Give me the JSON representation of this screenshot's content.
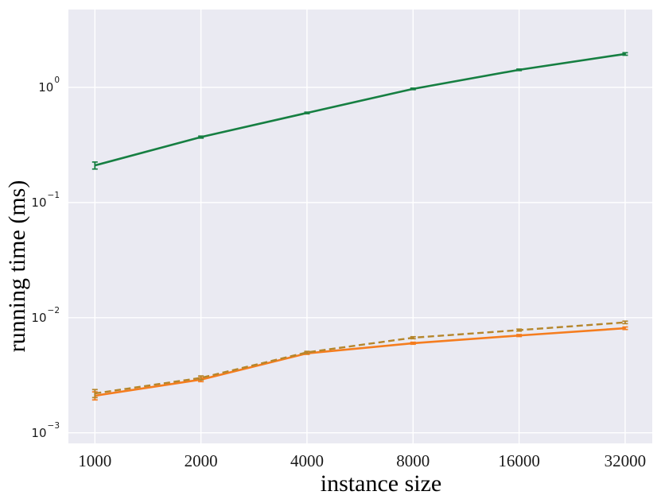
{
  "figure": {
    "background": "#ffffff",
    "plot_background": "#eaeaf2",
    "grid_color": "#ffffff",
    "tick_color": "#1a1a1a"
  },
  "chart_data": {
    "type": "line",
    "title": "",
    "xlabel": "instance size",
    "ylabel": "running time (ms)",
    "x_scale": "log2",
    "y_scale": "log10",
    "grid": true,
    "legend_position": "none",
    "x_ticks": [
      1000,
      2000,
      4000,
      8000,
      16000,
      32000
    ],
    "y_tick_exponents": [
      0,
      -1,
      -2,
      -3
    ],
    "xlim": [
      841,
      38200
    ],
    "ylim": [
      0.00081,
      4.74
    ],
    "x": [
      1000,
      2000,
      4000,
      8000,
      16000,
      32000
    ],
    "series": [
      {
        "name": "green-solid",
        "color": "#167f42",
        "style": "solid",
        "line_width": 2.6,
        "values": [
          0.21,
          0.37,
          0.6,
          0.97,
          1.42,
          1.95
        ],
        "yerr_pct": [
          7,
          2,
          1.5,
          1.5,
          1.5,
          2.5
        ]
      },
      {
        "name": "orange-solid",
        "color": "#f57d1f",
        "style": "solid",
        "line_width": 2.6,
        "values": [
          0.0021,
          0.0029,
          0.0049,
          0.006,
          0.007,
          0.0081
        ],
        "yerr_pct": [
          8,
          4,
          2,
          2,
          2,
          2.5
        ]
      },
      {
        "name": "orange-dashed",
        "color": "#b5862b",
        "style": "dashed",
        "line_width": 2.4,
        "values": [
          0.0022,
          0.003,
          0.005,
          0.0067,
          0.0078,
          0.0091
        ],
        "yerr_pct": [
          8,
          4,
          2,
          2,
          2,
          2.5
        ]
      }
    ]
  }
}
